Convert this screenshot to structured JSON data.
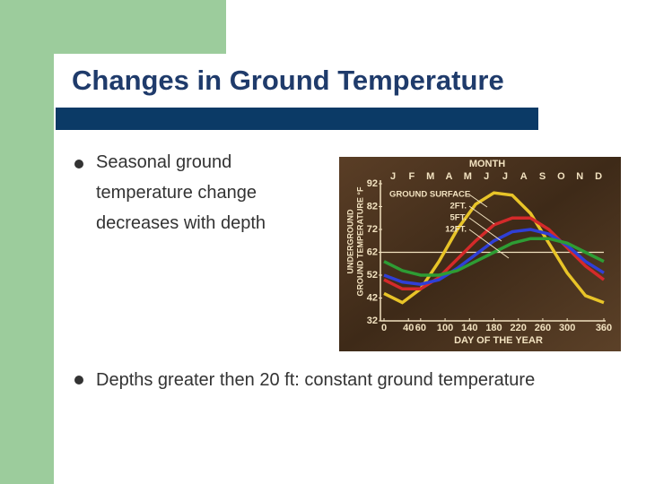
{
  "header": {
    "title": "Changes in Ground Temperature"
  },
  "bullets": [
    "Seasonal ground temperature change decreases with depth",
    "Depths greater then 20 ft: constant ground temperature"
  ],
  "chart_data": {
    "type": "line",
    "title": "MONTH",
    "months": [
      "J",
      "F",
      "M",
      "A",
      "M",
      "J",
      "J",
      "A",
      "S",
      "O",
      "N",
      "D"
    ],
    "x_label": "DAY OF THE YEAR",
    "y_label": [
      "UNDERGROUND",
      "GROUND TEMPERATURE °F"
    ],
    "x": [
      0,
      30,
      60,
      90,
      120,
      150,
      180,
      210,
      240,
      270,
      300,
      330,
      360
    ],
    "xlim": [
      0,
      360
    ],
    "xticks": [
      0,
      40,
      60,
      100,
      140,
      180,
      220,
      260,
      300,
      360
    ],
    "ylim": [
      32,
      92
    ],
    "yticks": [
      32,
      42,
      52,
      62,
      72,
      82,
      92
    ],
    "hline": 62,
    "series": [
      {
        "name": "GROUND SURFACE",
        "color": "#e8c428",
        "values": [
          44,
          40,
          46,
          58,
          72,
          83,
          88,
          87,
          79,
          66,
          53,
          43,
          40
        ]
      },
      {
        "name": "2FT.",
        "color": "#d42a2a",
        "values": [
          50,
          46,
          46,
          51,
          59,
          67,
          74,
          77,
          77,
          72,
          64,
          56,
          50
        ]
      },
      {
        "name": "5FT.",
        "color": "#2f3fd6",
        "values": [
          52,
          49,
          48,
          50,
          55,
          61,
          67,
          71,
          72,
          70,
          65,
          58,
          53
        ]
      },
      {
        "name": "12FT.",
        "color": "#2e9c34",
        "values": [
          58,
          54,
          52,
          52,
          54,
          58,
          62,
          66,
          68,
          68,
          66,
          62,
          58
        ]
      }
    ]
  }
}
